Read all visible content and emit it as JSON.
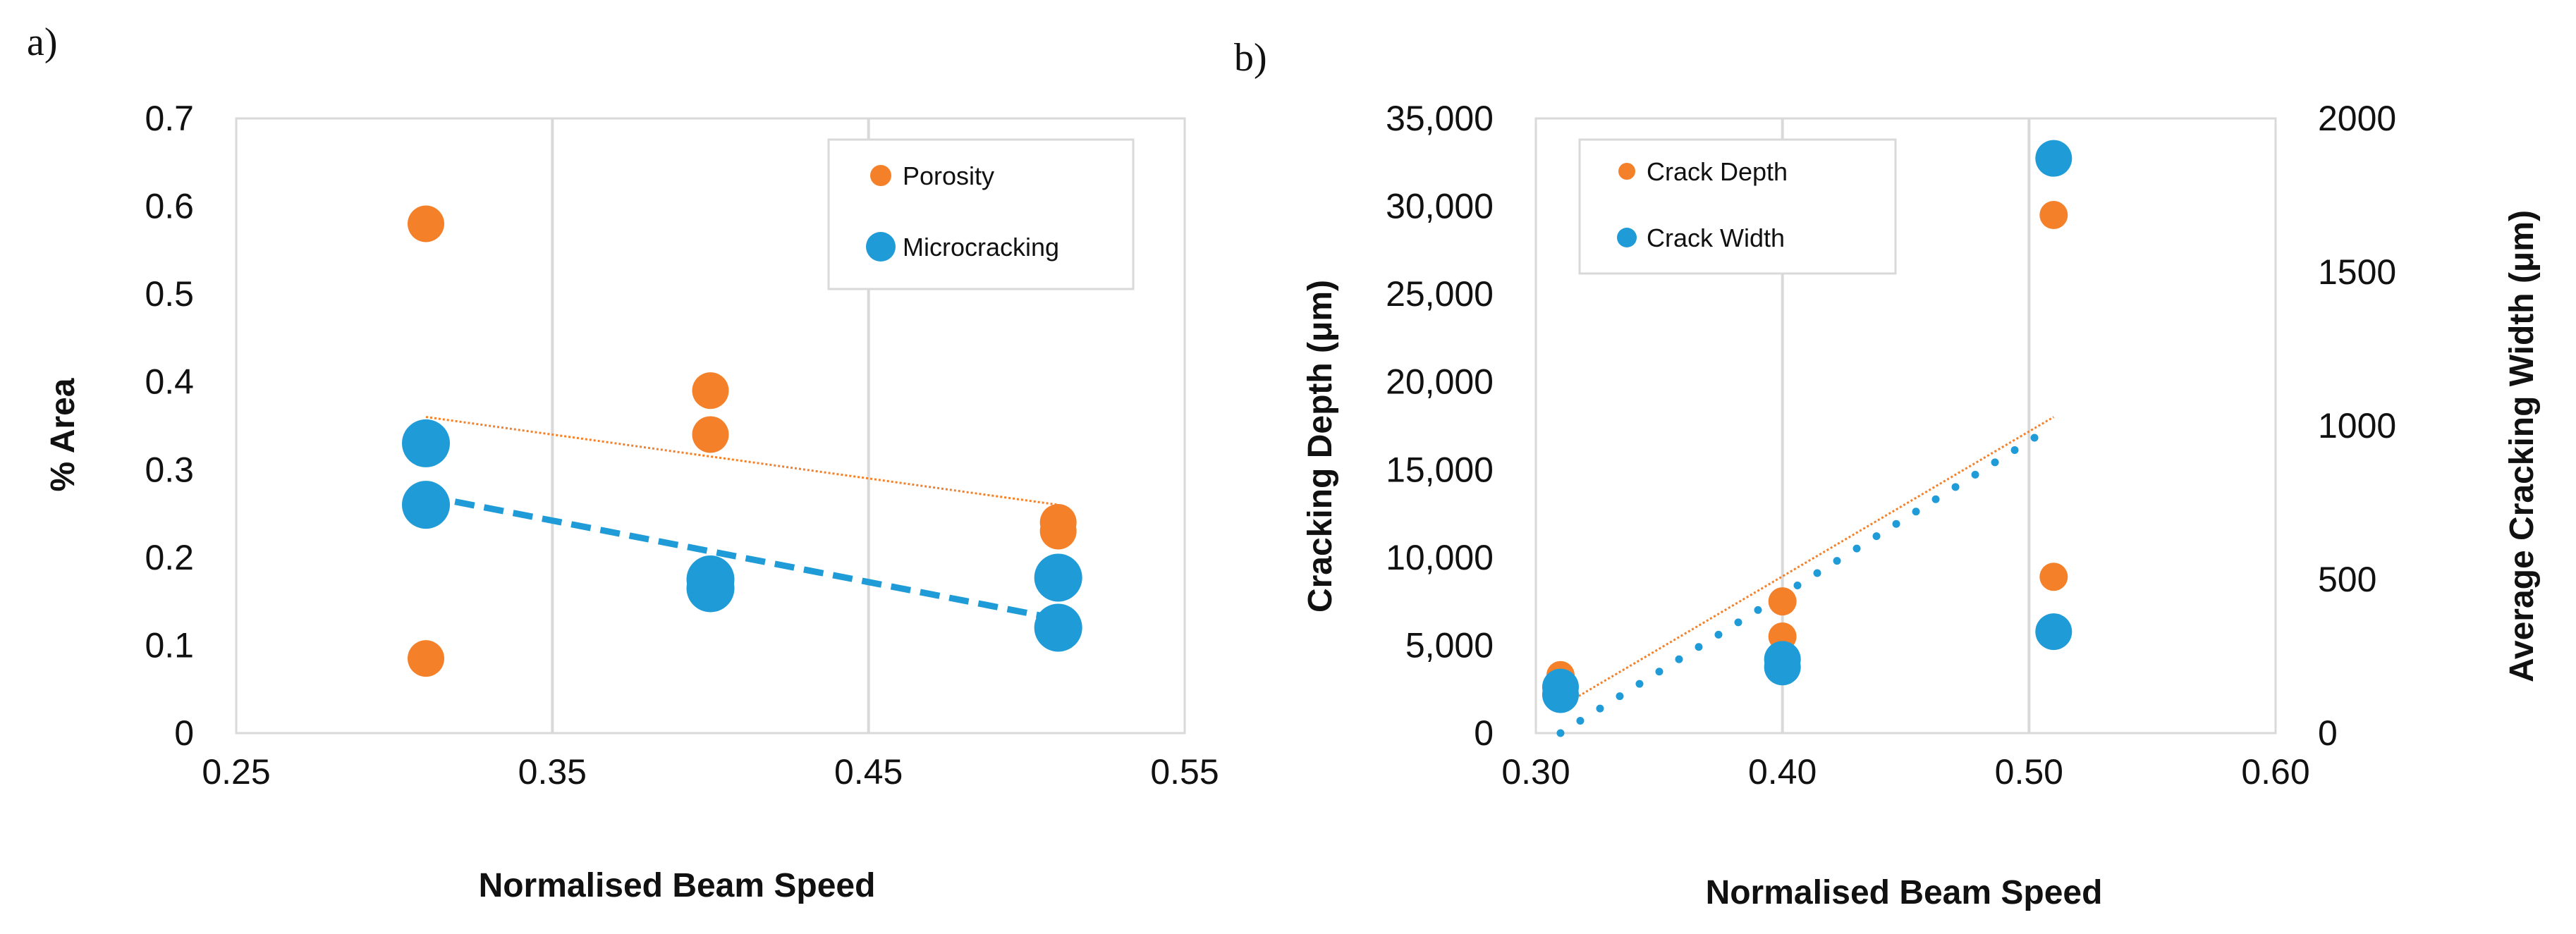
{
  "chart_data": [
    {
      "panel_label": "a)",
      "type": "scatter",
      "xlabel": "Normalised Beam Speed",
      "ylabel": "% Area",
      "xlim": [
        0.25,
        0.55
      ],
      "ylim": [
        0,
        0.7
      ],
      "xticks": [
        "0.25",
        "0.35",
        "0.45",
        "0.55"
      ],
      "yticks": [
        "0",
        "0.1",
        "0.2",
        "0.3",
        "0.4",
        "0.5",
        "0.6",
        "0.7"
      ],
      "grid": "vertical",
      "legend_position": "top-right",
      "series": [
        {
          "name": "Porosity",
          "color": "#F4812A",
          "points": [
            [
              0.31,
              0.58
            ],
            [
              0.31,
              0.085
            ],
            [
              0.4,
              0.39
            ],
            [
              0.4,
              0.34
            ],
            [
              0.51,
              0.24
            ],
            [
              0.51,
              0.23
            ]
          ],
          "trendline": {
            "style": "dotted-thin",
            "x": [
              0.31,
              0.51
            ],
            "y": [
              0.36,
              0.26
            ]
          }
        },
        {
          "name": "Microcracking",
          "color": "#1F9BD7",
          "points": [
            [
              0.31,
              0.33
            ],
            [
              0.31,
              0.26
            ],
            [
              0.4,
              0.175
            ],
            [
              0.4,
              0.165
            ],
            [
              0.51,
              0.177
            ],
            [
              0.51,
              0.12
            ]
          ],
          "trendline": {
            "style": "dashed-thick",
            "x": [
              0.31,
              0.51
            ],
            "y": [
              0.27,
              0.13
            ]
          }
        }
      ]
    },
    {
      "panel_label": "b)",
      "type": "scatter",
      "xlabel": "Normalised Beam Speed",
      "ylabel": "Cracking Depth (μm)",
      "y2label": "Average Cracking Width (μm)",
      "xlim": [
        0.3,
        0.6
      ],
      "ylim": [
        0,
        35000
      ],
      "y2lim": [
        0,
        2000
      ],
      "xticks": [
        "0.30",
        "0.40",
        "0.50",
        "0.60"
      ],
      "yticks": [
        "0",
        "5,000",
        "10,000",
        "15,000",
        "20,000",
        "25,000",
        "30,000",
        "35,000"
      ],
      "y2ticks": [
        "0",
        "500",
        "1000",
        "1500",
        "2000"
      ],
      "grid": "vertical",
      "legend_position": "top-left",
      "series": [
        {
          "name": "Crack Depth",
          "axis": "left",
          "color": "#F4812A",
          "points": [
            [
              0.31,
              3300
            ],
            [
              0.31,
              2600
            ],
            [
              0.4,
              7500
            ],
            [
              0.4,
              5500
            ],
            [
              0.51,
              29500
            ],
            [
              0.51,
              8900
            ]
          ],
          "trendline": {
            "style": "dotted-thin",
            "x": [
              0.31,
              0.51
            ],
            "y": [
              1500,
              18000
            ]
          }
        },
        {
          "name": "Crack Width",
          "axis": "right",
          "color": "#1F9BD7",
          "points": [
            [
              0.31,
              150
            ],
            [
              0.31,
              125
            ],
            [
              0.4,
              240
            ],
            [
              0.4,
              215
            ],
            [
              0.51,
              1870
            ],
            [
              0.51,
              330
            ]
          ],
          "trendline": {
            "style": "dotted-thick",
            "x": [
              0.31,
              0.51
            ],
            "y": [
              0,
              1000
            ]
          }
        }
      ]
    }
  ]
}
